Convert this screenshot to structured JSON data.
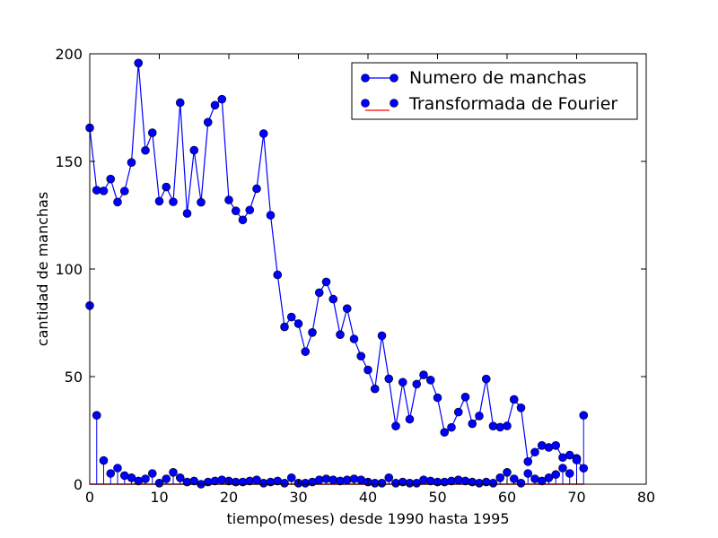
{
  "chart_data": {
    "type": "line",
    "xlabel": "tiempo(meses) desde 1990 hasta 1995",
    "ylabel": "cantidad de manchas",
    "xlim": [
      0,
      80
    ],
    "ylim": [
      0,
      200
    ],
    "x_ticks": [
      "0",
      "10",
      "20",
      "30",
      "40",
      "50",
      "60",
      "70",
      "80"
    ],
    "y_ticks": [
      "0",
      "50",
      "100",
      "150",
      "200"
    ],
    "grid": false,
    "legend_position": "top-right",
    "series": [
      {
        "name": "Numero de manchas",
        "style": "line-markers",
        "color": "#0000ff",
        "x": [
          0,
          1,
          2,
          3,
          4,
          5,
          6,
          7,
          8,
          9,
          10,
          11,
          12,
          13,
          14,
          15,
          16,
          17,
          18,
          19,
          20,
          21,
          22,
          23,
          24,
          25,
          26,
          27,
          28,
          29,
          30,
          31,
          32,
          33,
          34,
          35,
          36,
          37,
          38,
          39,
          40,
          41,
          42,
          43,
          44,
          45,
          46,
          47,
          48,
          49,
          50,
          51,
          52,
          53,
          54,
          55,
          56,
          57,
          58,
          59,
          60,
          61,
          62,
          63,
          64,
          65,
          66,
          67,
          68,
          69,
          70,
          71
        ],
        "values": [
          165.6,
          136.6,
          136.3,
          141.8,
          131.1,
          136.2,
          149.5,
          195.7,
          155.1,
          163.3,
          131.5,
          138.1,
          131.2,
          177.3,
          125.8,
          155.2,
          131.0,
          168.2,
          176.1,
          178.9,
          132.1,
          127.0,
          122.8,
          127.4,
          137.3,
          162.9,
          125.0,
          97.3,
          73.1,
          77.7,
          74.6,
          61.6,
          70.5,
          89.0,
          94.0,
          86.0,
          69.5,
          81.6,
          67.5,
          59.5,
          53.1,
          44.3,
          69.0,
          49.0,
          27.0,
          47.4,
          30.2,
          46.5,
          50.8,
          48.4,
          40.2,
          24.1,
          26.4,
          33.5,
          40.5,
          28.1,
          31.7,
          48.9,
          27.0,
          26.5,
          27.1,
          39.4,
          35.5,
          10.5,
          14.9,
          18.0,
          17.1,
          18.0,
          12.4,
          13.5,
          11.2,
          7.4
        ]
      },
      {
        "name": "Transformada de Fourier",
        "style": "stem",
        "color": "#0000ff",
        "baseline_color": "#ff0000",
        "x": [
          0,
          1,
          2,
          3,
          4,
          5,
          6,
          7,
          8,
          9,
          10,
          11,
          12,
          13,
          14,
          15,
          16,
          17,
          18,
          19,
          20,
          21,
          22,
          23,
          24,
          25,
          26,
          27,
          28,
          29,
          30,
          31,
          32,
          33,
          34,
          35,
          36,
          37,
          38,
          39,
          40,
          41,
          42,
          43,
          44,
          45,
          46,
          47,
          48,
          49,
          50,
          51,
          52,
          53,
          54,
          55,
          56,
          57,
          58,
          59,
          60,
          61,
          62,
          63,
          64,
          65,
          66,
          67,
          68,
          69,
          70,
          71
        ],
        "values": [
          83,
          32,
          11,
          5,
          7.5,
          4,
          3,
          1.5,
          2.5,
          5,
          0.5,
          2.5,
          5.5,
          3,
          1,
          1.5,
          0,
          1,
          1.5,
          2,
          1.5,
          1,
          1,
          1.5,
          2,
          0.5,
          1,
          1.5,
          0.5,
          3,
          0.5,
          0.5,
          1,
          2,
          2.5,
          2,
          1.5,
          2,
          2.5,
          2,
          1,
          0.5,
          0.5,
          3,
          0.5,
          1,
          0.5,
          0.5,
          2,
          1.5,
          1,
          1,
          1.5,
          2,
          1.5,
          1,
          0.5,
          1,
          0.5,
          3,
          5.5,
          2.5,
          0.5,
          5,
          2.5,
          1.5,
          3,
          4.5,
          7.5,
          5,
          12,
          32
        ]
      }
    ]
  }
}
